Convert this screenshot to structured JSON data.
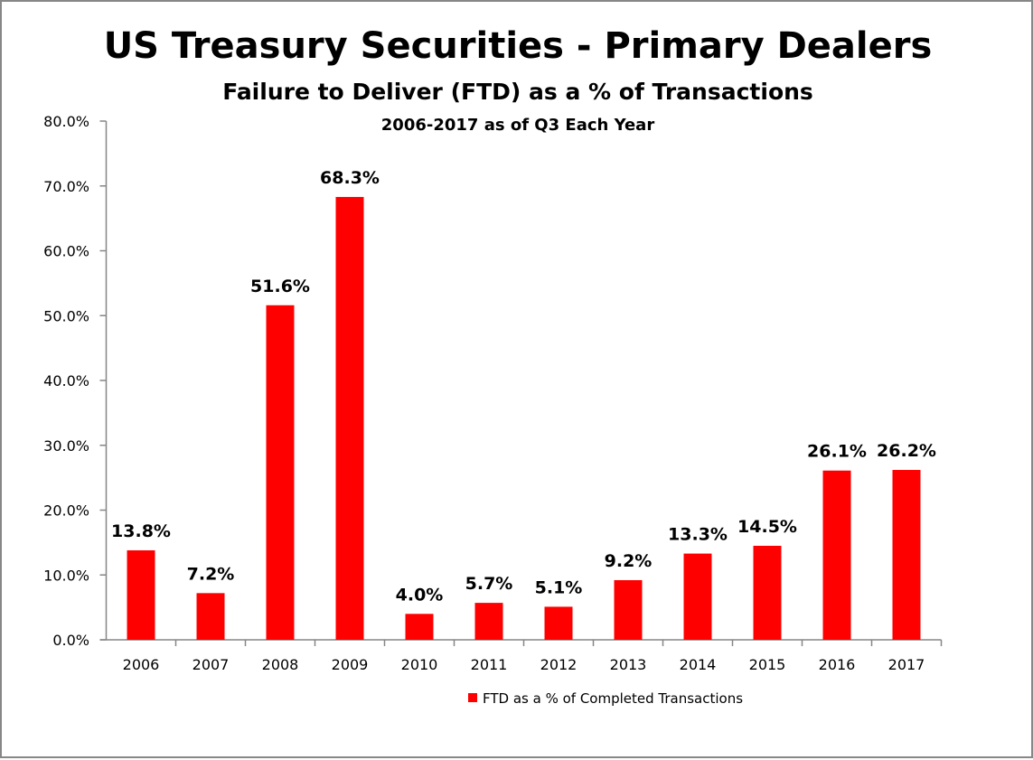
{
  "chart_data": {
    "type": "bar",
    "title": "US Treasury Securities - Primary Dealers",
    "subtitle": "Failure to Deliver (FTD) as a % of Transactions",
    "subtitle2": "2006-2017 as of Q3 Each Year",
    "xlabel": "",
    "ylabel": "",
    "categories": [
      "2006",
      "2007",
      "2008",
      "2009",
      "2010",
      "2011",
      "2012",
      "2013",
      "2014",
      "2015",
      "2016",
      "2017"
    ],
    "series": [
      {
        "name": "FTD as a % of Completed Transactions",
        "color": "#ff0000",
        "values": [
          13.8,
          7.2,
          51.6,
          68.3,
          4.0,
          5.7,
          5.1,
          9.2,
          13.3,
          14.5,
          26.1,
          26.2
        ],
        "labels": [
          "13.8%",
          "7.2%",
          "51.6%",
          "68.3%",
          "4.0%",
          "5.7%",
          "5.1%",
          "9.2%",
          "13.3%",
          "14.5%",
          "26.1%",
          "26.2%"
        ]
      }
    ],
    "yticks": [
      "0.0%",
      "10.0%",
      "20.0%",
      "30.0%",
      "40.0%",
      "50.0%",
      "60.0%",
      "70.0%",
      "80.0%"
    ],
    "ylim": [
      0,
      80
    ],
    "grid": false,
    "legend_position": "bottom"
  }
}
